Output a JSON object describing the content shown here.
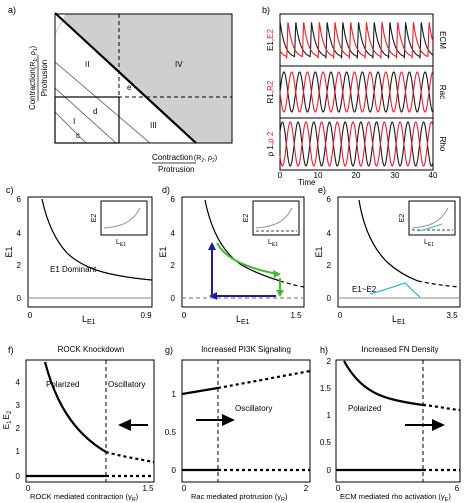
{
  "panel_labels": {
    "a": "a)",
    "b": "b)",
    "c": "c)",
    "d": "d)",
    "e": "e)",
    "f": "f)",
    "g": "g)",
    "h": "h)"
  },
  "panel_a": {
    "ylabel_top": "Contraction",
    "ylabel_sub": "(R",
    "ylabel_sub2": "1",
    "ylabel_sub3": ", ρ",
    "ylabel_sub4": "1",
    "ylabel_sub5": ")",
    "ylabel_bottom": "Protrusion",
    "xlabel_top": "Contraction",
    "xlabel_sub": "(R",
    "xlabel_sub2": "2",
    "xlabel_sub3": ", ρ",
    "xlabel_sub4": "2",
    "xlabel_sub5": ")",
    "xlabel_bottom": "Protrusion",
    "regions": {
      "I": "I",
      "II": "II",
      "III": "III",
      "IV": "IV",
      "c": "c",
      "d": "d",
      "e": "e"
    }
  },
  "panel_b": {
    "xlabel": "Time",
    "xticks": [
      "0",
      "10",
      "20",
      "30",
      "40"
    ],
    "rows": [
      {
        "ylabel_a": "E1",
        "ylabel_sep": ",",
        "ylabel_b": "E2",
        "right": "ECM"
      },
      {
        "ylabel_a": "R1",
        "ylabel_sep": ",",
        "ylabel_b": "R2",
        "right": "Rac"
      },
      {
        "ylabel_a": "ρ 1",
        "ylabel_sep": ",",
        "ylabel_b": "ρ 2",
        "right": "Rho"
      }
    ],
    "colors": {
      "series1": "#1a1a1a",
      "series2": "#e8202a"
    }
  },
  "panel_c": {
    "ylabel": "E1",
    "xlabel": "L",
    "xlabel_sub": "E1",
    "yticks": [
      "0",
      "2",
      "4",
      "6"
    ],
    "xticks": [
      "0",
      "0.9"
    ],
    "annotation": "E1 Dominant",
    "inset_ylabel": "E2",
    "inset_xlabel": "L",
    "inset_xlabel_sub": "E1"
  },
  "panel_d": {
    "ylabel": "E1",
    "xlabel": "L",
    "xlabel_sub": "E1",
    "yticks": [
      "0",
      "2",
      "4",
      "6"
    ],
    "xticks": [
      "0",
      "1.5"
    ],
    "inset_ylabel": "E2",
    "inset_xlabel": "L",
    "inset_xlabel_sub": "E1",
    "colors": {
      "arrow_blue": "#1c1c9c",
      "arrow_green": "#45b935"
    }
  },
  "panel_e": {
    "ylabel": "E1",
    "xlabel": "L",
    "xlabel_sub": "E1",
    "yticks": [
      "0",
      "2",
      "4",
      "6"
    ],
    "xticks": [
      "0",
      "3.5"
    ],
    "annotation": "E1~E2",
    "inset_ylabel": "E2",
    "inset_xlabel": "L",
    "inset_xlabel_sub": "E1",
    "colors": {
      "cyan": "#41b6d6"
    }
  },
  "panel_f": {
    "title": "ROCK Knockdown",
    "ylabel_a": "E",
    "ylabel_a_sub": "1",
    "ylabel_b": "E",
    "ylabel_b_sub": "2",
    "xlabel": "ROCK mediated contraction (γ",
    "xlabel_sub": "R",
    "xlabel_end": ")",
    "yticks": [
      "0",
      "1",
      "2",
      "3",
      "4"
    ],
    "xticks": [
      "0",
      "1.5"
    ],
    "region_left": "Polarized",
    "region_right": "Oscillatory"
  },
  "panel_g": {
    "title": "Increased PI3K Signaling",
    "xlabel": "Rac mediated protrusion (γ",
    "xlabel_sub": "R",
    "xlabel_end": ")",
    "yticks": [
      "0",
      "0.5",
      "1"
    ],
    "xticks": [
      "0",
      "2"
    ],
    "region_right": "Oscillatory"
  },
  "panel_h": {
    "title": "Increased FN Density",
    "xlabel": "ECM mediated rho activation (γ",
    "xlabel_sub": "E",
    "xlabel_end": ")",
    "yticks": [
      "0",
      "0.5",
      "1",
      "1.5",
      "2"
    ],
    "xticks": [
      "0",
      "6"
    ],
    "region_left": "Polarized"
  },
  "chart_data": [
    {
      "panel": "c",
      "type": "line",
      "xlabel": "L E1",
      "ylabel": "E1",
      "xlim": [
        0,
        0.9
      ],
      "ylim": [
        0,
        6
      ],
      "series": [
        {
          "x": [
            0.09,
            0.12,
            0.16,
            0.2,
            0.25,
            0.3,
            0.4,
            0.5,
            0.6,
            0.7,
            0.8,
            0.9
          ],
          "y": [
            5.8,
            4.6,
            3.7,
            3.1,
            2.6,
            2.3,
            1.9,
            1.65,
            1.5,
            1.4,
            1.32,
            1.27
          ]
        },
        {
          "x": [
            0,
            0.9
          ],
          "y": [
            0,
            0
          ]
        }
      ]
    },
    {
      "panel": "d",
      "type": "line",
      "xlabel": "L E1",
      "ylabel": "E1",
      "xlim": [
        0,
        1.5
      ],
      "ylim": [
        0,
        6
      ],
      "series": [
        {
          "x": [
            0.3,
            0.35,
            0.4,
            0.5,
            0.6,
            0.7,
            0.8,
            0.9,
            1.0,
            1.1
          ],
          "y": [
            5.5,
            4.3,
            3.5,
            2.6,
            2.0,
            1.7,
            1.45,
            1.3,
            1.2,
            1.1
          ]
        },
        {
          "x": [
            1.1,
            1.2,
            1.3,
            1.4,
            1.5
          ],
          "y": [
            1.1,
            1.02,
            0.96,
            0.9,
            0.86
          ]
        }
      ]
    },
    {
      "panel": "e",
      "type": "line",
      "xlabel": "L E1",
      "ylabel": "E1",
      "xlim": [
        0,
        3.5
      ],
      "ylim": [
        0,
        6
      ],
      "series": [
        {
          "x": [
            0.6,
            0.7,
            0.8,
            1.0,
            1.2,
            1.5,
            1.8,
            2.2
          ],
          "y": [
            5.3,
            4.0,
            3.2,
            2.2,
            1.7,
            1.3,
            1.05,
            0.9
          ]
        },
        {
          "x": [
            2.2,
            2.5,
            2.8,
            3.1,
            3.5
          ],
          "y": [
            0.9,
            0.82,
            0.76,
            0.7,
            0.64
          ]
        }
      ]
    },
    {
      "panel": "f",
      "type": "line",
      "xlabel": "ROCK mediated contraction (γR)",
      "ylabel": "E1 E2",
      "xlim": [
        0,
        1.5
      ],
      "ylim": [
        0,
        5
      ],
      "series": [
        {
          "x": [
            0.25,
            0.3,
            0.4,
            0.5,
            0.6,
            0.7,
            0.8,
            0.9,
            1.0,
            1.05
          ],
          "y": [
            5.0,
            4.2,
            3.2,
            2.6,
            2.15,
            1.8,
            1.55,
            1.35,
            1.18,
            1.1
          ]
        },
        {
          "x": [
            1.05,
            1.2,
            1.35,
            1.5
          ],
          "y": [
            1.1,
            0.98,
            0.88,
            0.8
          ]
        },
        {
          "x": [
            0,
            1.05
          ],
          "y": [
            0,
            0
          ]
        },
        {
          "x": [
            1.05,
            1.5
          ],
          "y": [
            0,
            0
          ]
        }
      ]
    },
    {
      "panel": "g",
      "type": "line",
      "xlabel": "Rac mediated protrusion (γR)",
      "xlim": [
        0,
        2
      ],
      "ylim": [
        0,
        1.5
      ],
      "series": [
        {
          "x": [
            0,
            0.5
          ],
          "y": [
            1.08,
            1.17
          ]
        },
        {
          "x": [
            0.5,
            2
          ],
          "y": [
            1.17,
            1.37
          ]
        },
        {
          "x": [
            0,
            0.5
          ],
          "y": [
            0,
            0
          ]
        },
        {
          "x": [
            0.5,
            2
          ],
          "y": [
            0,
            0
          ]
        }
      ]
    },
    {
      "panel": "h",
      "type": "line",
      "xlabel": "ECM mediated rho activation (γE)",
      "xlim": [
        0,
        6
      ],
      "ylim": [
        0,
        2
      ],
      "series": [
        {
          "x": [
            0.4,
            0.8,
            1.5,
            2.5,
            3.5,
            4.3
          ],
          "y": [
            2.0,
            1.65,
            1.35,
            1.18,
            1.1,
            1.07
          ]
        },
        {
          "x": [
            4.3,
            5.0,
            6.0
          ],
          "y": [
            1.07,
            1.0,
            0.93
          ]
        },
        {
          "x": [
            0,
            4.3
          ],
          "y": [
            0,
            0
          ]
        },
        {
          "x": [
            4.3,
            6.0
          ],
          "y": [
            0,
            0
          ]
        }
      ]
    }
  ]
}
